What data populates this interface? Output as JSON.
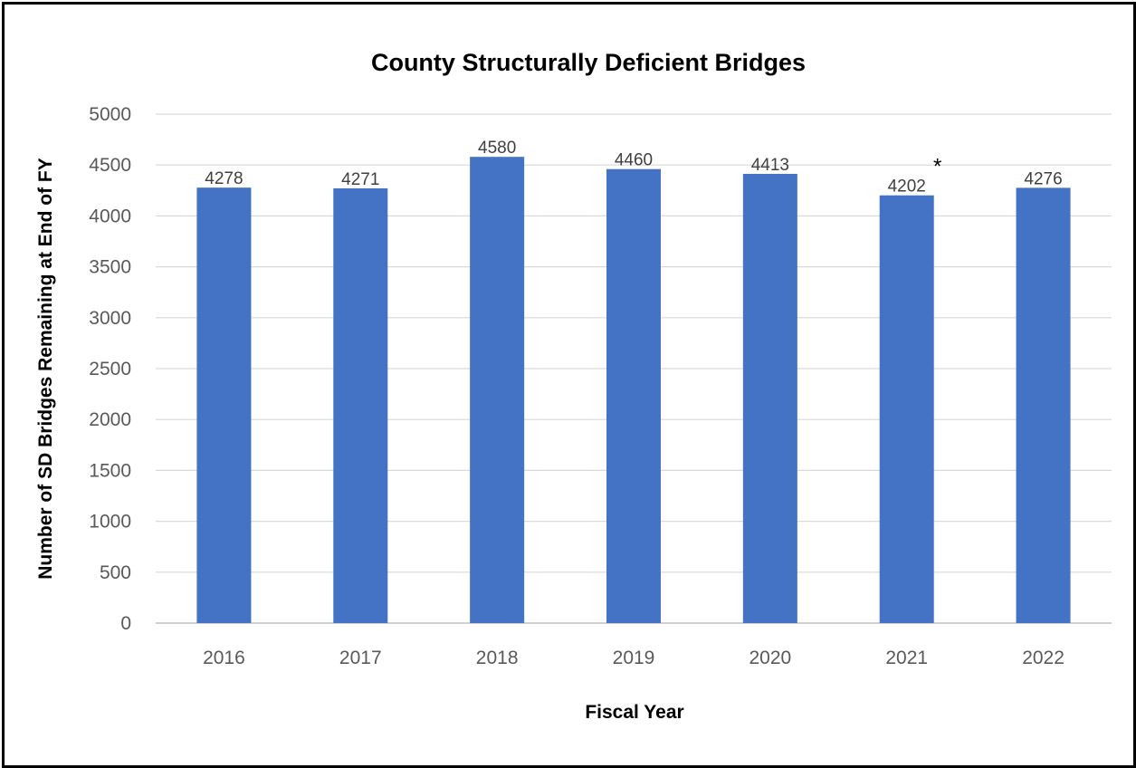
{
  "chart_data": {
    "type": "bar",
    "title": "County Structurally Deficient Bridges",
    "xlabel": "Fiscal Year",
    "ylabel": "Number of SD Bridges Remaining at End of FY",
    "categories": [
      "2016",
      "2017",
      "2018",
      "2019",
      "2020",
      "2021",
      "2022"
    ],
    "values": [
      4278,
      4271,
      4580,
      4460,
      4413,
      4202,
      4276
    ],
    "value_labels": [
      "4278",
      "4271",
      "4580",
      "4460",
      "4413",
      "4202",
      "4276"
    ],
    "yticks": [
      "0",
      "500",
      "1000",
      "1500",
      "2000",
      "2500",
      "3000",
      "3500",
      "4000",
      "4500",
      "5000"
    ],
    "ylim": [
      0,
      5000
    ],
    "grid": true,
    "legend": "none",
    "bar_color": "#4472C4",
    "annotation": {
      "text": "*",
      "category": "2021"
    }
  }
}
